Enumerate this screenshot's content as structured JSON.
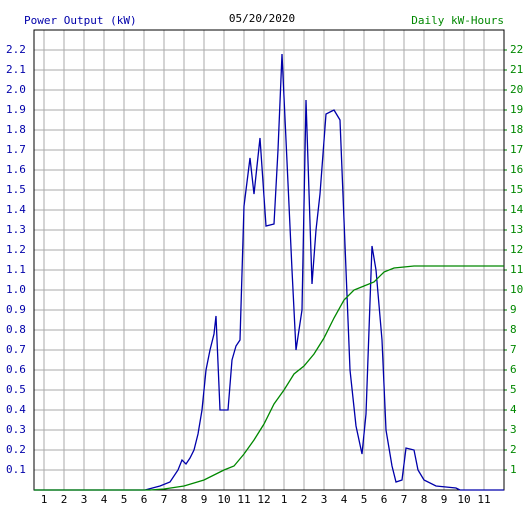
{
  "chart_data": {
    "type": "line",
    "title": "05/20/2020",
    "ylabel": "Power Output (kW)",
    "y2label": "Daily kW-Hours",
    "xlim": [
      0.5,
      24
    ],
    "xticks": [
      1,
      2,
      3,
      4,
      5,
      6,
      7,
      8,
      9,
      10,
      11,
      12,
      {
        "value": 13,
        "label": "1"
      },
      {
        "value": 14,
        "label": "2"
      },
      {
        "value": 15,
        "label": "3"
      },
      {
        "value": 16,
        "label": "4"
      },
      {
        "value": 17,
        "label": "5"
      },
      {
        "value": 18,
        "label": "6"
      },
      {
        "value": 19,
        "label": "7"
      },
      {
        "value": 20,
        "label": "8"
      },
      {
        "value": 21,
        "label": "9"
      },
      {
        "value": 22,
        "label": "10"
      },
      {
        "value": 23,
        "label": "11"
      }
    ],
    "ylim": [
      0,
      2.3
    ],
    "yticks": [
      0.1,
      0.2,
      0.3,
      0.4,
      0.5,
      0.6,
      0.7,
      0.8,
      0.9,
      {
        "value": 1,
        "label": "1.0"
      },
      1.1,
      1.2,
      1.3,
      1.4,
      1.5,
      1.6,
      1.7,
      1.8,
      1.9,
      {
        "value": 2,
        "label": "2.0"
      },
      2.1,
      2.2
    ],
    "y2lim": [
      0,
      23
    ],
    "y2ticks": [
      1,
      2,
      3,
      4,
      5,
      6,
      7,
      8,
      9,
      10,
      11,
      12,
      13,
      14,
      15,
      16,
      17,
      18,
      19,
      20,
      21,
      22
    ],
    "grid": true,
    "series": [
      {
        "name": "Power Output (kW)",
        "color": "#0000aa",
        "x": [
          0.5,
          6.05,
          6.8,
          7.3,
          7.7,
          7.9,
          8.1,
          8.3,
          8.5,
          8.7,
          8.9,
          9.1,
          9.3,
          9.5,
          9.6,
          9.8,
          10.2,
          10.4,
          10.6,
          10.8,
          11,
          11.3,
          11.5,
          11.8,
          12.1,
          12.5,
          12.7,
          12.9,
          13.1,
          13.4,
          13.6,
          13.9,
          14.1,
          14.4,
          14.6,
          14.8,
          15.1,
          15.5,
          15.8,
          16.1,
          16.3,
          16.6,
          16.9,
          17.1,
          17.4,
          17.6,
          17.9,
          18.1,
          18.4,
          18.6,
          18.9,
          19.1,
          19.5,
          19.7,
          20,
          20.6,
          21.6,
          21.8,
          24
        ],
        "values": [
          0,
          0,
          0.02,
          0.04,
          0.1,
          0.15,
          0.13,
          0.16,
          0.2,
          0.28,
          0.4,
          0.6,
          0.7,
          0.78,
          0.87,
          0.4,
          0.4,
          0.65,
          0.72,
          0.75,
          1.42,
          1.66,
          1.48,
          1.76,
          1.32,
          1.33,
          1.7,
          2.18,
          1.75,
          1.1,
          0.7,
          0.9,
          1.95,
          1.03,
          1.3,
          1.48,
          1.88,
          1.9,
          1.85,
          1.1,
          0.6,
          0.32,
          0.18,
          0.38,
          1.22,
          1.1,
          0.75,
          0.3,
          0.12,
          0.04,
          0.05,
          0.21,
          0.2,
          0.1,
          0.05,
          0.02,
          0.01,
          0,
          0
        ]
      },
      {
        "name": "Daily kW-Hours",
        "color": "#008800",
        "axis": "y2",
        "x": [
          0.5,
          6.3,
          7,
          8,
          9,
          10,
          10.5,
          11,
          11.5,
          12,
          12.5,
          13,
          13.5,
          14,
          14.5,
          15,
          15.5,
          16,
          16.5,
          17,
          17.5,
          18,
          18.5,
          19.5,
          24
        ],
        "values": [
          0,
          0,
          0.05,
          0.2,
          0.5,
          1,
          1.2,
          1.8,
          2.5,
          3.3,
          4.3,
          5,
          5.8,
          6.2,
          6.8,
          7.6,
          8.6,
          9.5,
          10,
          10.2,
          10.4,
          10.9,
          11.1,
          11.2,
          11.2
        ]
      }
    ]
  }
}
